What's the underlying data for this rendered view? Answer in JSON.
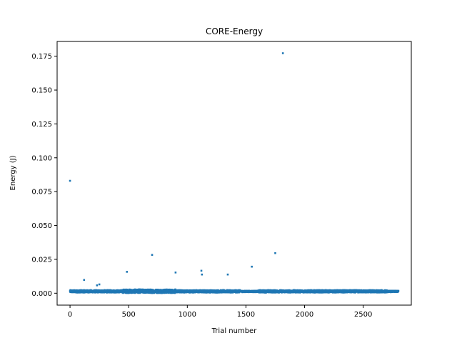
{
  "chart_data": {
    "type": "scatter",
    "title": "CORE-Energy",
    "xlabel": "Trial number",
    "ylabel": "Energy (J)",
    "xlim": [
      -110,
      2910
    ],
    "ylim": [
      -0.0088,
      0.1859
    ],
    "xticks": [
      0,
      500,
      1000,
      1500,
      2000,
      2500
    ],
    "yticks": [
      0.0,
      0.025,
      0.05,
      0.075,
      0.1,
      0.125,
      0.15,
      0.175
    ],
    "ytick_labels": [
      "0.000",
      "0.025",
      "0.050",
      "0.075",
      "0.100",
      "0.125",
      "0.150",
      "0.175"
    ],
    "xtick_labels": [
      "0",
      "500",
      "1000",
      "1500",
      "2000",
      "2500"
    ],
    "grid": false,
    "marker_color": "#1f77b4",
    "outliers": [
      {
        "x": 0,
        "y": 0.083
      },
      {
        "x": 120,
        "y": 0.0098
      },
      {
        "x": 230,
        "y": 0.0058
      },
      {
        "x": 250,
        "y": 0.0065
      },
      {
        "x": 485,
        "y": 0.0158
      },
      {
        "x": 700,
        "y": 0.0283
      },
      {
        "x": 900,
        "y": 0.0153
      },
      {
        "x": 1120,
        "y": 0.0166
      },
      {
        "x": 1125,
        "y": 0.0138
      },
      {
        "x": 1345,
        "y": 0.0138
      },
      {
        "x": 1550,
        "y": 0.0196
      },
      {
        "x": 1750,
        "y": 0.0296
      },
      {
        "x": 1815,
        "y": 0.1772
      }
    ],
    "bulk": {
      "x_start": 0,
      "x_end": 2800,
      "count": 2800,
      "baseline_y": 0.0012,
      "spread_y": 0.0018
    }
  }
}
